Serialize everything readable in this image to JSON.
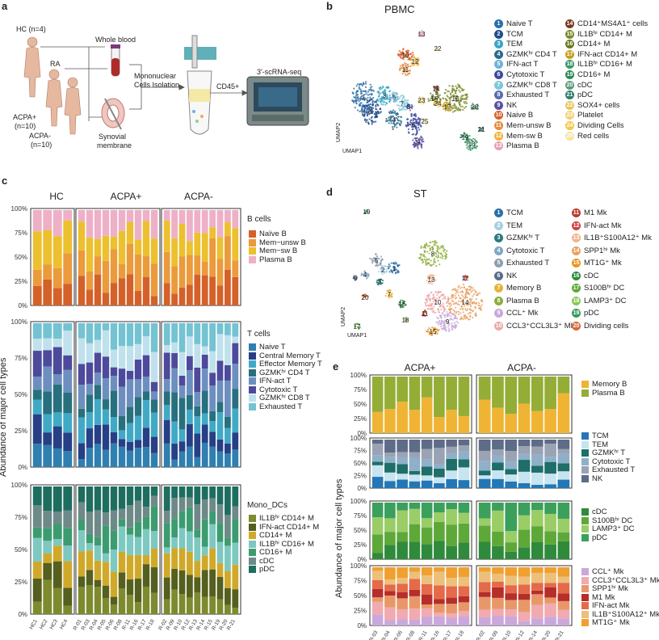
{
  "panel_labels": {
    "a": "a",
    "b": "b",
    "c": "c",
    "d": "d",
    "e": "e"
  },
  "panel_a": {
    "hc": "HC (n=4)",
    "ra": "RA",
    "acpa_pos": "ACPA+",
    "acpa_pos_n": "(n=10)",
    "acpa_neg": "ACPA-",
    "acpa_neg_n": "(n=10)",
    "whole_blood": "Whole blood",
    "synovial": "Synovial",
    "membrane": "membrane",
    "mono_1": "Mononuclear",
    "mono_2": "Cells Isolation",
    "cd45": "CD45+",
    "scrna": "3'-scRNA-seq"
  },
  "panel_b": {
    "title": "PBMC",
    "umap1": "UMAP1",
    "umap2": "UMAP2",
    "legend_left": [
      {
        "n": "1",
        "label": "Naive T",
        "color": "#2a6fa8"
      },
      {
        "n": "2",
        "label": "TCM",
        "color": "#1f4e8c"
      },
      {
        "n": "3",
        "label": "TEM",
        "color": "#3aa6c4"
      },
      {
        "n": "4",
        "label": "GZMKʰⁱ CD4 T",
        "color": "#2b6b8f"
      },
      {
        "n": "5",
        "label": "IFN-act T",
        "color": "#6cb4d4"
      },
      {
        "n": "6",
        "label": "Cytotoxic T",
        "color": "#3e4b9e"
      },
      {
        "n": "7",
        "label": "GZMKʰⁱ CD8 T",
        "color": "#7fc7da"
      },
      {
        "n": "8",
        "label": "Exhausted T",
        "color": "#5a6bb0"
      },
      {
        "n": "9",
        "label": "NK",
        "color": "#5b4fa0"
      },
      {
        "n": "10",
        "label": "Naive B",
        "color": "#d9622b"
      },
      {
        "n": "11",
        "label": "Mem-unsw B",
        "color": "#e88a3a"
      },
      {
        "n": "12",
        "label": "Mem-sw B",
        "color": "#efb23c"
      },
      {
        "n": "13",
        "label": "Plasma B",
        "color": "#e8a0b4"
      }
    ],
    "legend_right": [
      {
        "n": "14",
        "label": "CD14⁺MS4A1⁺ cells",
        "color": "#7a3b1e"
      },
      {
        "n": "15",
        "label": "IL1Bʰⁱ CD14+ M",
        "color": "#7c8a2a"
      },
      {
        "n": "16",
        "label": "CD14+ M",
        "color": "#6b7a22"
      },
      {
        "n": "17",
        "label": "IFN-act CD14+ M",
        "color": "#c8a020"
      },
      {
        "n": "18",
        "label": "IL1Bʰⁱ CD16+ M",
        "color": "#3a9a6a"
      },
      {
        "n": "19",
        "label": "CD16+ M",
        "color": "#2f8a58"
      },
      {
        "n": "20",
        "label": "cDC",
        "color": "#5e9c7a"
      },
      {
        "n": "21",
        "label": "pDC",
        "color": "#2e7d6b"
      },
      {
        "n": "22",
        "label": "SOX4+ cells",
        "color": "#e8c65a"
      },
      {
        "n": "23",
        "label": "Platelet",
        "color": "#f0d27a"
      },
      {
        "n": "24",
        "label": "Dividing Cells",
        "color": "#f2c94c"
      },
      {
        "n": "25",
        "label": "Red cells",
        "color": "#f6e3a0"
      }
    ]
  },
  "panel_c": {
    "groups": [
      "HC",
      "ACPA+",
      "ACPA-"
    ],
    "yticks": [
      "100%",
      "75%",
      "50%",
      "25%",
      "0%"
    ],
    "ylabel": "Abundance of major cell types",
    "b_title": "B cells",
    "b_legend": [
      {
        "label": "Naïve B",
        "color": "#d4612a"
      },
      {
        "label": "Mem−unsw B",
        "color": "#eb9a3c"
      },
      {
        "label": "Mem−sw B",
        "color": "#ecc02e"
      },
      {
        "label": "Plasma B",
        "color": "#eeb0c6"
      }
    ],
    "t_title": "T cells",
    "t_legend": [
      {
        "label": "Naive T",
        "color": "#2f7fb0"
      },
      {
        "label": "Central Memory T",
        "color": "#273f86"
      },
      {
        "label": "Effector Memory T",
        "color": "#40aac6"
      },
      {
        "label": "GZMKʰⁱ CD4 T",
        "color": "#28707e"
      },
      {
        "label": "IFN-act T",
        "color": "#6d8fbf"
      },
      {
        "label": "Cytotoxic T",
        "color": "#4d4a9c"
      },
      {
        "label": "GZMKʰⁱ CD8 T",
        "color": "#bfe1ec"
      },
      {
        "label": "Exhausted T",
        "color": "#73c3d2"
      }
    ],
    "m_title": "Mono_DCs",
    "m_legend": [
      {
        "label": "IL1Bʰⁱ CD14+ M",
        "color": "#7e8a2e"
      },
      {
        "label": "IFN-act CD14+ M",
        "color": "#555f1e"
      },
      {
        "label": "CD14+ M",
        "color": "#d0a92a"
      },
      {
        "label": "IL1Bʰⁱ CD16+ M",
        "color": "#7dc8c0"
      },
      {
        "label": "CD16+ M",
        "color": "#3c9c70"
      },
      {
        "label": "cDC",
        "color": "#6e8a88"
      },
      {
        "label": "pDC",
        "color": "#1e6e60"
      }
    ],
    "samples_hc": [
      "HC1",
      "HC2",
      "HC3",
      "HC4"
    ],
    "samples_pos": [
      "R-01",
      "R-03",
      "R-04",
      "R-05",
      "R-06",
      "R-08",
      "R-11",
      "R-16",
      "R-17",
      "R-18"
    ],
    "samples_neg": [
      "R-02",
      "R-09",
      "R-10",
      "R-12",
      "R-13",
      "R-14",
      "R-15",
      "R-19",
      "R-20",
      "R-21"
    ]
  },
  "panel_d": {
    "title": "ST",
    "umap1": "UMAP1",
    "umap2": "UMAP2",
    "legend_left": [
      {
        "n": "1",
        "label": "TCM",
        "color": "#2a6fa8"
      },
      {
        "n": "2",
        "label": "TEM",
        "color": "#a7cfe3"
      },
      {
        "n": "3",
        "label": "GZMKʰⁱ T",
        "color": "#2a7a7a"
      },
      {
        "n": "4",
        "label": "Cytotoxic T",
        "color": "#7fa8c4"
      },
      {
        "n": "5",
        "label": "Exhausted T",
        "color": "#8f9db0"
      },
      {
        "n": "6",
        "label": "NK",
        "color": "#5a6a8a"
      },
      {
        "n": "7",
        "label": "Memory B",
        "color": "#e8b23a"
      },
      {
        "n": "8",
        "label": "Plasma B",
        "color": "#8cae3a"
      },
      {
        "n": "9",
        "label": "CCL⁺ Mk",
        "color": "#c8a8d8"
      },
      {
        "n": "10",
        "label": "CCL3⁺CCL3L3⁺ Mk",
        "color": "#eea8a8"
      }
    ],
    "legend_right": [
      {
        "n": "11",
        "label": "M1 Mk",
        "color": "#c0392b"
      },
      {
        "n": "12",
        "label": "IFN-act Mk",
        "color": "#d04040"
      },
      {
        "n": "13",
        "label": "IL1B⁺S100A12⁺ Mk",
        "color": "#f2b48a"
      },
      {
        "n": "14",
        "label": "SPP1ʰⁱ Mk",
        "color": "#e8a060"
      },
      {
        "n": "15",
        "label": "MT1G⁺ Mk",
        "color": "#e8941e"
      },
      {
        "n": "16",
        "label": "cDC",
        "color": "#2e8a3e"
      },
      {
        "n": "17",
        "label": "S100Bʰⁱ DC",
        "color": "#5fa83a"
      },
      {
        "n": "18",
        "label": "LAMP3⁺ DC",
        "color": "#8cc65a"
      },
      {
        "n": "19",
        "label": "pDC",
        "color": "#3a9a5a"
      },
      {
        "n": "20",
        "label": "Dividing cells",
        "color": "#d46a3a"
      }
    ]
  },
  "panel_e": {
    "groups": [
      "ACPA+",
      "ACPA-"
    ],
    "yticks": [
      "100%",
      "75%",
      "50%",
      "25%",
      "0%"
    ],
    "ylabel": "Abundance of major cell types",
    "b_legend": [
      {
        "label": "Memory B",
        "color": "#efb434"
      },
      {
        "label": "Plasma B",
        "color": "#94ad36"
      }
    ],
    "t_legend": [
      {
        "label": "TCM",
        "color": "#2377b6"
      },
      {
        "label": "TEM",
        "color": "#c7e4f0"
      },
      {
        "label": "GZMKʰⁱ T",
        "color": "#1e6e6a"
      },
      {
        "label": "Cytotoxic T",
        "color": "#8fb0c8"
      },
      {
        "label": "Exhausted T",
        "color": "#9aa3b4"
      },
      {
        "label": "NK",
        "color": "#5e6c88"
      }
    ],
    "d_legend": [
      {
        "label": "cDC",
        "color": "#2f8a3c"
      },
      {
        "label": "S100Bʰⁱ DC",
        "color": "#5ea83a"
      },
      {
        "label": "LAMP3⁺ DC",
        "color": "#9acd66"
      },
      {
        "label": "pDC",
        "color": "#3aa05c"
      }
    ],
    "m_legend": [
      {
        "label": "CCL⁺ Mk",
        "color": "#caa8dc"
      },
      {
        "label": "CCL3⁺CCL3L3⁺ Mk",
        "color": "#f0aab0"
      },
      {
        "label": "SPP1ʰⁱ Mk",
        "color": "#e89868"
      },
      {
        "label": "M1 Mk",
        "color": "#b52e2a"
      },
      {
        "label": "IFN-act Mk",
        "color": "#e46a4a"
      },
      {
        "label": "IL1B⁺S100A12⁺ Mk",
        "color": "#ecc07a"
      },
      {
        "label": "MT1G⁺ Mk",
        "color": "#f0a030"
      }
    ],
    "samples_pos": [
      "R-03",
      "R-04",
      "R-06",
      "R-08",
      "R-11",
      "R-16",
      "R-17",
      "R-18"
    ],
    "samples_neg": [
      "R-02",
      "R-09",
      "R-10",
      "R-12",
      "R-14",
      "R-20",
      "R-21"
    ]
  }
}
